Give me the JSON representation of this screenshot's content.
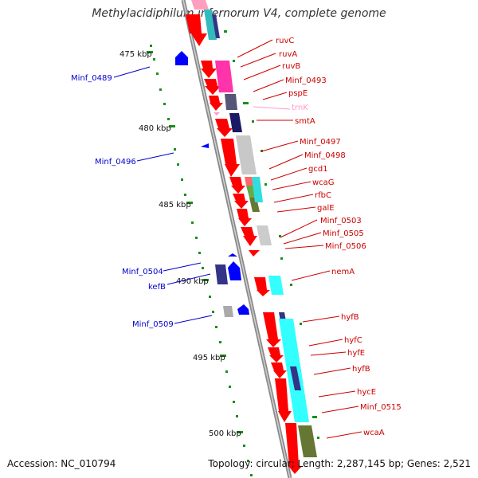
{
  "title": "Methylacidiphilum infernorum V4, complete genome",
  "accession": "Accession: NC_010794",
  "topology_info": "Topology: circular; Length: 2,287,145 bp; Genes: 2,521",
  "colors": {
    "forward_gene": "#ff0000",
    "reverse_gene": "#0000ff",
    "backbone": "#8a8a8a",
    "tick": "#1a8f1a",
    "trna": "#ff99cc",
    "reverse_label": "#0000cc",
    "forward_label": "#cc0000"
  },
  "scale": {
    "ticks": [
      {
        "label": "475 kbp"
      },
      {
        "label": "480 kbp"
      },
      {
        "label": "485 kbp"
      },
      {
        "label": "490 kbp"
      },
      {
        "label": "495 kbp"
      },
      {
        "label": "500 kbp"
      }
    ]
  },
  "forward_labels": [
    {
      "text": "ruvC"
    },
    {
      "text": "ruvA"
    },
    {
      "text": "ruvB"
    },
    {
      "text": "Minf_0493"
    },
    {
      "text": "pspE"
    },
    {
      "text": "trnK"
    },
    {
      "text": "smtA"
    },
    {
      "text": "Minf_0497"
    },
    {
      "text": "Minf_0498"
    },
    {
      "text": "gcd1"
    },
    {
      "text": "wcaG"
    },
    {
      "text": "rfbC"
    },
    {
      "text": "galE"
    },
    {
      "text": "Minf_0503"
    },
    {
      "text": "Minf_0505"
    },
    {
      "text": "Minf_0506"
    },
    {
      "text": "nemA"
    },
    {
      "text": "hyfB"
    },
    {
      "text": "hyfC"
    },
    {
      "text": "hyfE"
    },
    {
      "text": "hyfB"
    },
    {
      "text": "hycE"
    },
    {
      "text": "Minf_0515"
    },
    {
      "text": "wcaA"
    }
  ],
  "reverse_labels": [
    {
      "text": "Minf_0489"
    },
    {
      "text": "Minf_0496"
    },
    {
      "text": "Minf_0504"
    },
    {
      "text": "kefB"
    },
    {
      "text": "Minf_0509"
    }
  ]
}
